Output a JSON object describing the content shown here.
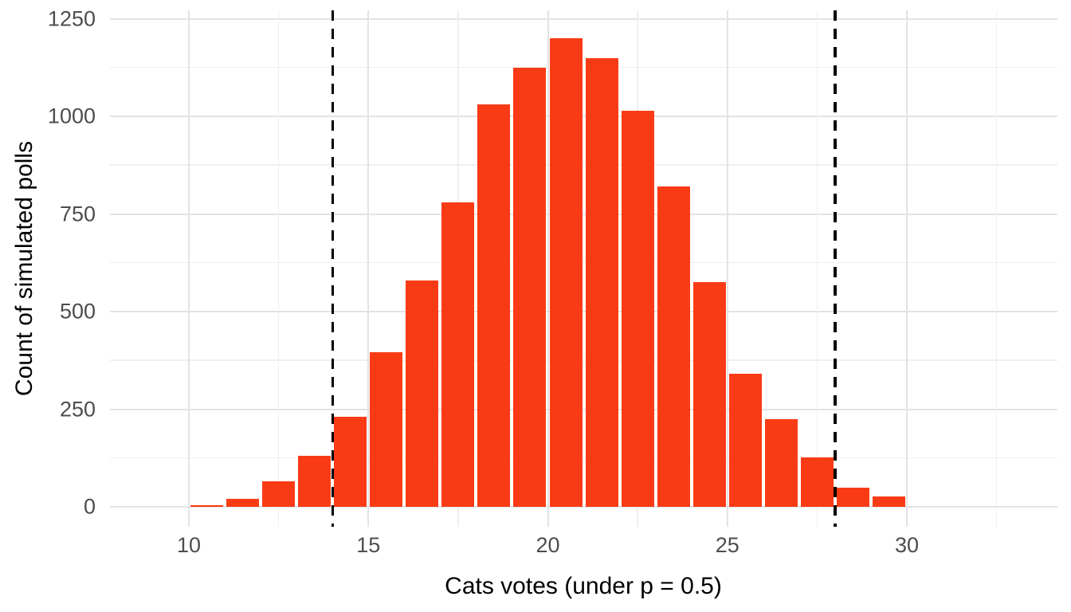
{
  "chart_data": {
    "type": "bar",
    "subtype": "histogram",
    "title": "",
    "xlabel": "Cats votes (under p = 0.5)",
    "ylabel": "Count of simulated polls",
    "bin_width": 1,
    "bin_starts": [
      10,
      11,
      12,
      13,
      14,
      15,
      16,
      17,
      18,
      19,
      20,
      21,
      22,
      23,
      24,
      25,
      26,
      27,
      28,
      29
    ],
    "values": [
      4,
      20,
      65,
      130,
      230,
      395,
      580,
      780,
      1030,
      1125,
      1200,
      1150,
      1015,
      820,
      575,
      340,
      225,
      127,
      48,
      27
    ],
    "x_major_ticks": [
      10,
      15,
      20,
      25,
      30
    ],
    "x_minor_gridlines": [
      12.5,
      17.5,
      22.5,
      27.5,
      32.5
    ],
    "y_major_ticks": [
      0,
      250,
      500,
      750,
      1000,
      1250
    ],
    "y_minor_gridlines": [
      125,
      375,
      625,
      875,
      1125
    ],
    "xlim": [
      7.8,
      34.2
    ],
    "ylim": [
      0,
      1271
    ],
    "vlines": [
      14,
      28
    ],
    "grid": true,
    "legend": false,
    "colors": {
      "bar_fill": "#F93B15",
      "vline": "#000000",
      "grid_major": "#E3E3E3",
      "grid_minor": "#EFEFEF",
      "tick_label": "#4D4D4D",
      "axis_title": "#000000",
      "background": "#FFFFFF"
    }
  }
}
